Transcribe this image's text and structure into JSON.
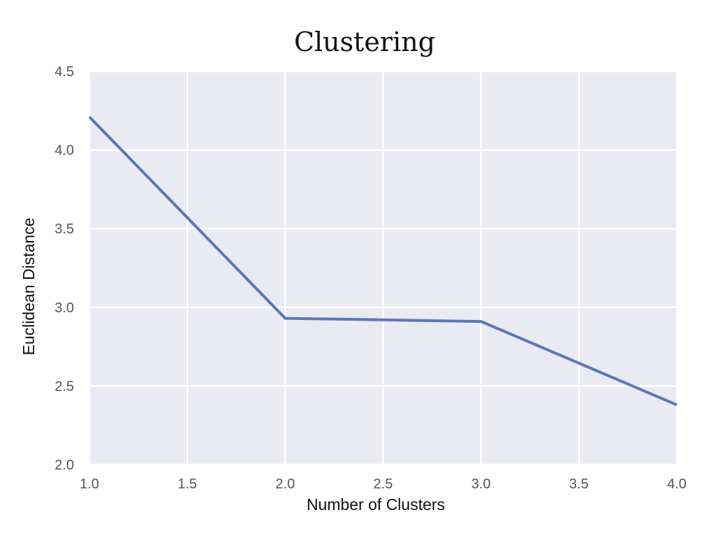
{
  "chart_data": {
    "type": "line",
    "title": "Clustering",
    "xlabel": "Number of Clusters",
    "ylabel": "Euclidean Distance",
    "xlim": [
      1.0,
      4.0
    ],
    "ylim": [
      2.0,
      4.5
    ],
    "xticks": [
      "1.0",
      "1.5",
      "2.0",
      "2.5",
      "3.0",
      "3.5",
      "4.0"
    ],
    "yticks": [
      "2.0",
      "2.5",
      "3.0",
      "3.5",
      "4.0",
      "4.5"
    ],
    "grid": true,
    "series": [
      {
        "x": [
          1.0,
          2.0,
          3.0,
          4.0
        ],
        "y": [
          4.21,
          2.93,
          2.91,
          2.38
        ]
      }
    ],
    "colors": {
      "line": "#5a78b3",
      "plot_background": "#eaeaf2",
      "grid": "#ffffff"
    }
  }
}
